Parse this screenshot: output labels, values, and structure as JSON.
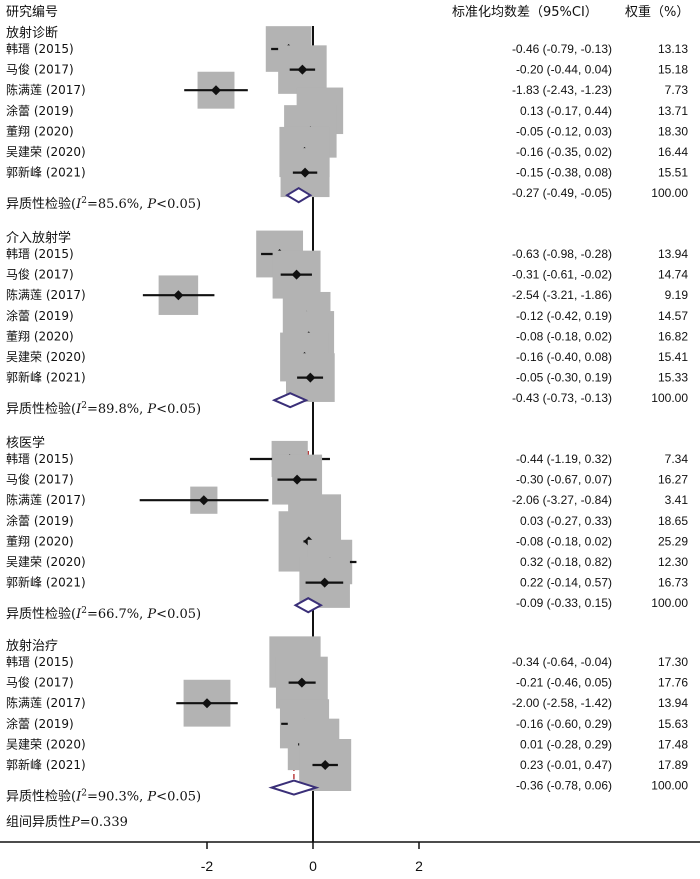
{
  "chart_data": {
    "type": "forest",
    "header": {
      "study_col": "研究编号",
      "effect_col": "标准化均数差（95%CI）",
      "weight_col": "权重（%）"
    },
    "x_axis": {
      "ticks": [
        {
          "value": -2,
          "label": "-2"
        },
        {
          "value": 0,
          "label": "0"
        },
        {
          "value": 2,
          "label": "2"
        }
      ],
      "range": [
        -3.4,
        3.5
      ]
    },
    "groups": [
      {
        "name": "放射诊断",
        "studies": [
          {
            "study": "韩瑨 (2015)",
            "smd": -0.46,
            "lo": -0.79,
            "hi": -0.13,
            "ci_text": "-0.46 (-0.79, -0.13)",
            "weight": "13.13"
          },
          {
            "study": "马俊 (2017)",
            "smd": -0.2,
            "lo": -0.44,
            "hi": 0.04,
            "ci_text": "-0.20 (-0.44, 0.04)",
            "weight": "15.18"
          },
          {
            "study": "陈满莲 (2017)",
            "smd": -1.83,
            "lo": -2.43,
            "hi": -1.23,
            "ci_text": "-1.83 (-2.43, -1.23)",
            "weight": "7.73"
          },
          {
            "study": "涂蕾 (2019)",
            "smd": 0.13,
            "lo": -0.17,
            "hi": 0.44,
            "ci_text": "0.13 (-0.17, 0.44)",
            "weight": "13.71"
          },
          {
            "study": "董翔 (2020)",
            "smd": -0.05,
            "lo": -0.12,
            "hi": 0.03,
            "ci_text": "-0.05 (-0.12, 0.03)",
            "weight": "18.30"
          },
          {
            "study": "吴建荣 (2020)",
            "smd": -0.16,
            "lo": -0.35,
            "hi": 0.02,
            "ci_text": "-0.16 (-0.35, 0.02)",
            "weight": "16.44"
          },
          {
            "study": "郭新峰 (2021)",
            "smd": -0.15,
            "lo": -0.38,
            "hi": 0.08,
            "ci_text": "-0.15 (-0.38, 0.08)",
            "weight": "15.51"
          }
        ],
        "pooled": {
          "smd": -0.27,
          "lo": -0.49,
          "hi": -0.05,
          "ci_text": "-0.27 (-0.49, -0.05)",
          "weight": "100.00"
        },
        "heterogeneity": {
          "label": "异质性检验(",
          "i2_sym": "I",
          "i2_sup": "2",
          "i2_val": "=85.6%, ",
          "p_sym": "P",
          "p_val": "<0.05)"
        }
      },
      {
        "name": "介入放射学",
        "studies": [
          {
            "study": "韩瑨 (2015)",
            "smd": -0.63,
            "lo": -0.98,
            "hi": -0.28,
            "ci_text": "-0.63 (-0.98, -0.28)",
            "weight": "13.94"
          },
          {
            "study": "马俊 (2017)",
            "smd": -0.31,
            "lo": -0.61,
            "hi": -0.02,
            "ci_text": "-0.31 (-0.61, -0.02)",
            "weight": "14.74"
          },
          {
            "study": "陈满莲 (2017)",
            "smd": -2.54,
            "lo": -3.21,
            "hi": -1.86,
            "ci_text": "-2.54 (-3.21, -1.86)",
            "weight": "9.19"
          },
          {
            "study": "涂蕾 (2019)",
            "smd": -0.12,
            "lo": -0.42,
            "hi": 0.19,
            "ci_text": "-0.12 (-0.42, 0.19)",
            "weight": "14.57"
          },
          {
            "study": "董翔 (2020)",
            "smd": -0.08,
            "lo": -0.18,
            "hi": 0.02,
            "ci_text": "-0.08 (-0.18, 0.02)",
            "weight": "16.82"
          },
          {
            "study": "吴建荣 (2020)",
            "smd": -0.16,
            "lo": -0.4,
            "hi": 0.08,
            "ci_text": "-0.16 (-0.40, 0.08)",
            "weight": "15.41"
          },
          {
            "study": "郭新峰 (2021)",
            "smd": -0.05,
            "lo": -0.3,
            "hi": 0.19,
            "ci_text": "-0.05 (-0.30, 0.19)",
            "weight": "15.33"
          }
        ],
        "pooled": {
          "smd": -0.43,
          "lo": -0.73,
          "hi": -0.13,
          "ci_text": "-0.43 (-0.73, -0.13)",
          "weight": "100.00"
        },
        "heterogeneity": {
          "label": "异质性检验(",
          "i2_sym": "I",
          "i2_sup": "2",
          "i2_val": "=89.8%, ",
          "p_sym": "P",
          "p_val": "<0.05)"
        }
      },
      {
        "name": "核医学",
        "studies": [
          {
            "study": "韩瑨 (2015)",
            "smd": -0.44,
            "lo": -1.19,
            "hi": 0.32,
            "ci_text": "-0.44 (-1.19, 0.32)",
            "weight": "7.34"
          },
          {
            "study": "马俊 (2017)",
            "smd": -0.3,
            "lo": -0.67,
            "hi": 0.07,
            "ci_text": "-0.30 (-0.67, 0.07)",
            "weight": "16.27"
          },
          {
            "study": "陈满莲 (2017)",
            "smd": -2.06,
            "lo": -3.27,
            "hi": -0.84,
            "ci_text": "-2.06 (-3.27, -0.84)",
            "weight": "3.41"
          },
          {
            "study": "涂蕾 (2019)",
            "smd": 0.03,
            "lo": -0.27,
            "hi": 0.33,
            "ci_text": "0.03 (-0.27, 0.33)",
            "weight": "18.65"
          },
          {
            "study": "董翔 (2020)",
            "smd": -0.08,
            "lo": -0.18,
            "hi": 0.02,
            "ci_text": "-0.08 (-0.18, 0.02)",
            "weight": "25.29"
          },
          {
            "study": "吴建荣 (2020)",
            "smd": 0.32,
            "lo": -0.18,
            "hi": 0.82,
            "ci_text": "0.32 (-0.18, 0.82)",
            "weight": "12.30"
          },
          {
            "study": "郭新峰 (2021)",
            "smd": 0.22,
            "lo": -0.14,
            "hi": 0.57,
            "ci_text": "0.22 (-0.14, 0.57)",
            "weight": "16.73"
          }
        ],
        "pooled": {
          "smd": -0.09,
          "lo": -0.33,
          "hi": 0.15,
          "ci_text": "-0.09 (-0.33, 0.15)",
          "weight": "100.00"
        },
        "heterogeneity": {
          "label": "异质性检验(",
          "i2_sym": "I",
          "i2_sup": "2",
          "i2_val": "=66.7%, ",
          "p_sym": "P",
          "p_val": "<0.05)"
        }
      },
      {
        "name": "放射治疗",
        "studies": [
          {
            "study": "韩瑨 (2015)",
            "smd": -0.34,
            "lo": -0.64,
            "hi": -0.04,
            "ci_text": "-0.34 (-0.64, -0.04)",
            "weight": "17.30"
          },
          {
            "study": "马俊 (2017)",
            "smd": -0.21,
            "lo": -0.46,
            "hi": 0.05,
            "ci_text": "-0.21 (-0.46, 0.05)",
            "weight": "17.76"
          },
          {
            "study": "陈满莲 (2017)",
            "smd": -2.0,
            "lo": -2.58,
            "hi": -1.42,
            "ci_text": "-2.00 (-2.58, -1.42)",
            "weight": "13.94"
          },
          {
            "study": "涂蕾 (2019)",
            "smd": -0.16,
            "lo": -0.6,
            "hi": 0.29,
            "ci_text": "-0.16 (-0.60, 0.29)",
            "weight": "15.63"
          },
          {
            "study": "吴建荣 (2020)",
            "smd": 0.01,
            "lo": -0.28,
            "hi": 0.29,
            "ci_text": "0.01 (-0.28, 0.29)",
            "weight": "17.48"
          },
          {
            "study": "郭新峰 (2021)",
            "smd": 0.23,
            "lo": -0.01,
            "hi": 0.47,
            "ci_text": "0.23 (-0.01, 0.47)",
            "weight": "17.89"
          }
        ],
        "pooled": {
          "smd": -0.36,
          "lo": -0.78,
          "hi": 0.06,
          "ci_text": "-0.36 (-0.78, 0.06)",
          "weight": "100.00"
        },
        "heterogeneity": {
          "label": "异质性检验(",
          "i2_sym": "I",
          "i2_sup": "2",
          "i2_val": "=90.3%, ",
          "p_sym": "P",
          "p_val": "<0.05)"
        }
      }
    ],
    "between_group": {
      "label": "组间异质性",
      "p_sym": "P",
      "p_val": "=0.339"
    },
    "colors": {
      "marker": "#111111",
      "box": "#b3b3b3",
      "diamond": "#3a2f78",
      "pooled_line": "#b22222",
      "axis": "#111111"
    }
  }
}
